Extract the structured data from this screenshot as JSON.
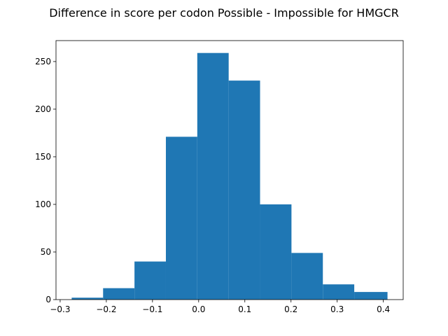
{
  "chart_data": {
    "type": "bar",
    "subtype": "histogram",
    "title": "Difference in score per codon Possible - Impossible for HMGCR",
    "xlabel": "",
    "ylabel": "",
    "bin_edges": [
      -0.275,
      -0.207,
      -0.139,
      -0.071,
      -0.003,
      0.065,
      0.133,
      0.201,
      0.269,
      0.337,
      0.409
    ],
    "values": [
      2,
      12,
      40,
      171,
      259,
      230,
      100,
      49,
      16,
      8
    ],
    "xlim": [
      -0.309,
      0.443
    ],
    "ylim": [
      0,
      272
    ],
    "xticks": [
      -0.3,
      -0.2,
      -0.1,
      0.0,
      0.1,
      0.2,
      0.3,
      0.4
    ],
    "xtick_labels": [
      "−0.3",
      "−0.2",
      "−0.1",
      "0.0",
      "0.1",
      "0.2",
      "0.3",
      "0.4"
    ],
    "yticks": [
      0,
      50,
      100,
      150,
      200,
      250
    ],
    "ytick_labels": [
      "0",
      "50",
      "100",
      "150",
      "200",
      "250"
    ],
    "bar_color": "#1f77b4",
    "grid": false,
    "legend": "none"
  }
}
